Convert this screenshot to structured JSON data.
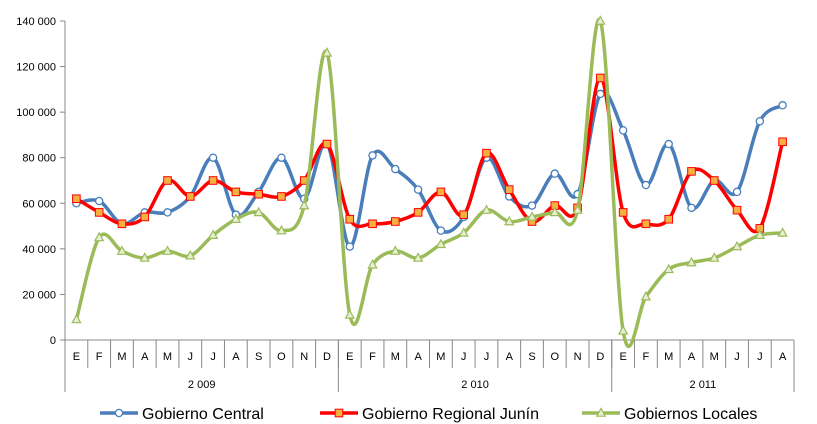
{
  "chart_data": {
    "type": "line",
    "smooth": true,
    "ylim": [
      0,
      140000
    ],
    "yticks": [
      0,
      20000,
      40000,
      60000,
      80000,
      100000,
      120000,
      140000
    ],
    "ytick_labels": [
      "0",
      "20 000",
      "40 000",
      "60 000",
      "80 000",
      "100 000",
      "120 000",
      "140 000"
    ],
    "grid": false,
    "legend_position": "bottom",
    "categories": [
      "E",
      "F",
      "M",
      "A",
      "M",
      "J",
      "J",
      "A",
      "S",
      "O",
      "N",
      "D",
      "E",
      "F",
      "M",
      "A",
      "M",
      "J",
      "J",
      "A",
      "S",
      "O",
      "N",
      "D",
      "E",
      "F",
      "M",
      "A",
      "M",
      "J",
      "J",
      "A"
    ],
    "year_groups": [
      {
        "label": "2 009",
        "count": 12
      },
      {
        "label": "2 010",
        "count": 12
      },
      {
        "label": "2 011",
        "count": 8
      }
    ],
    "series": [
      {
        "name": "Gobierno Central",
        "color": "#4a7ebb",
        "marker": "circle",
        "values": [
          60000,
          61000,
          51000,
          56000,
          56000,
          63000,
          80000,
          55000,
          65000,
          80000,
          62000,
          86000,
          41000,
          81000,
          75000,
          66000,
          48000,
          54000,
          80000,
          63000,
          59000,
          73000,
          64000,
          108000,
          92000,
          68000,
          86000,
          58000,
          70000,
          65000,
          96000,
          103000
        ]
      },
      {
        "name": "Gobierno Regional Junín",
        "color": "#ff0000",
        "marker": "square",
        "marker_fill": "#f5b041",
        "values": [
          62000,
          56000,
          51000,
          54000,
          70000,
          63000,
          70000,
          65000,
          64000,
          63000,
          70000,
          86000,
          53000,
          51000,
          52000,
          56000,
          65000,
          55000,
          82000,
          66000,
          52000,
          59000,
          58000,
          115000,
          56000,
          51000,
          53000,
          74000,
          70000,
          57000,
          49000,
          87000
        ]
      },
      {
        "name": "Gobiernos Locales",
        "color": "#9bbb59",
        "marker": "triangle",
        "values": [
          9000,
          45000,
          39000,
          36000,
          39000,
          37000,
          46000,
          53000,
          56000,
          48000,
          59000,
          126000,
          11000,
          33000,
          39000,
          36000,
          42000,
          47000,
          57000,
          52000,
          54000,
          56000,
          57000,
          140000,
          4000,
          19000,
          31000,
          34000,
          36000,
          41000,
          46000,
          47000
        ]
      }
    ]
  }
}
